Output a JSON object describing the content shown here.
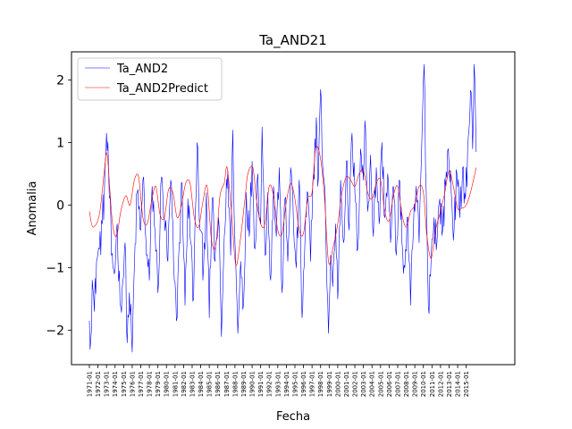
{
  "chart_data": {
    "type": "line",
    "title": "Ta_AND21",
    "xlabel": "Fecha",
    "ylabel": "Anomalia",
    "ylim": [
      -2.55,
      2.45
    ],
    "grid": false,
    "legend_position": "top-left",
    "x_start": "1971-01",
    "x_end": "2016-12",
    "x_tick_labels": [
      "1971-01",
      "1972-01",
      "1973-01",
      "1974-01",
      "1975-01",
      "1976-01",
      "1977-01",
      "1978-01",
      "1979-01",
      "1980-01",
      "1981-01",
      "1982-01",
      "1983-01",
      "1984-01",
      "1985-01",
      "1986-01",
      "1987-01",
      "1988-01",
      "1989-01",
      "1990-01",
      "1991-01",
      "1992-01",
      "1993-01",
      "1994-01",
      "1995-01",
      "1996-01",
      "1997-01",
      "1998-01",
      "1999-01",
      "2000-01",
      "2001-01",
      "2002-01",
      "2003-01",
      "2004-01",
      "2005-01",
      "2006-01",
      "2007-01",
      "2008-01",
      "2009-01",
      "2010-01",
      "2011-01",
      "2012-01",
      "2013-01",
      "2014-01",
      "2015-01"
    ],
    "y_ticks": [
      -2,
      -1,
      0,
      1,
      2
    ],
    "series": [
      {
        "name": "Ta_AND2",
        "color": "#0000ff",
        "key_points": [
          [
            "1971-01",
            -1.85
          ],
          [
            "1971-03",
            -2.15
          ],
          [
            "1971-05",
            -1.2
          ],
          [
            "1971-08",
            -1.7
          ],
          [
            "1971-11",
            -0.9
          ],
          [
            "1972-03",
            -0.7
          ],
          [
            "1972-07",
            -0.3
          ],
          [
            "1972-10",
            0.2
          ],
          [
            "1973-01",
            1.15
          ],
          [
            "1973-04",
            0.5
          ],
          [
            "1973-08",
            -0.8
          ],
          [
            "1973-12",
            -1.1
          ],
          [
            "1974-04",
            -0.3
          ],
          [
            "1974-08",
            -1.6
          ],
          [
            "1974-12",
            -1.2
          ],
          [
            "1975-03",
            -0.6
          ],
          [
            "1975-06",
            -2.2
          ],
          [
            "1975-09",
            -1.4
          ],
          [
            "1976-01",
            -2.35
          ],
          [
            "1976-04",
            -1.0
          ],
          [
            "1976-08",
            0.2
          ],
          [
            "1977-01",
            -0.4
          ],
          [
            "1977-05",
            0.45
          ],
          [
            "1977-09",
            -0.8
          ],
          [
            "1978-01",
            -1.2
          ],
          [
            "1978-05",
            0.3
          ],
          [
            "1978-09",
            -0.4
          ],
          [
            "1979-01",
            -1.4
          ],
          [
            "1979-06",
            0.45
          ],
          [
            "1979-10",
            -0.2
          ],
          [
            "1980-03",
            -0.9
          ],
          [
            "1980-07",
            0.4
          ],
          [
            "1980-12",
            -1.2
          ],
          [
            "1981-03",
            -1.85
          ],
          [
            "1981-07",
            -0.6
          ],
          [
            "1981-11",
            0.35
          ],
          [
            "1982-03",
            -1.6
          ],
          [
            "1982-07",
            0.1
          ],
          [
            "1982-11",
            -0.6
          ],
          [
            "1983-03",
            -1.5
          ],
          [
            "1983-08",
            1.0
          ],
          [
            "1983-12",
            -0.4
          ],
          [
            "1984-05",
            -1.0
          ],
          [
            "1984-09",
            0.2
          ],
          [
            "1985-01",
            -1.8
          ],
          [
            "1985-05",
            0.1
          ],
          [
            "1985-09",
            -0.9
          ],
          [
            "1986-02",
            -0.2
          ],
          [
            "1986-06",
            -2.1
          ],
          [
            "1986-10",
            -0.5
          ],
          [
            "1987-03",
            0.55
          ],
          [
            "1987-07",
            -0.8
          ],
          [
            "1987-10",
            1.2
          ],
          [
            "1988-01",
            -0.6
          ],
          [
            "1988-05",
            -2.05
          ],
          [
            "1988-09",
            -0.9
          ],
          [
            "1989-01",
            -1.6
          ],
          [
            "1989-05",
            0.2
          ],
          [
            "1989-09",
            -0.5
          ],
          [
            "1990-01",
            0.7
          ],
          [
            "1990-05",
            -0.7
          ],
          [
            "1990-09",
            0.5
          ],
          [
            "1991-01",
            -0.3
          ],
          [
            "1991-03",
            1.25
          ],
          [
            "1991-07",
            -0.8
          ],
          [
            "1991-11",
            0.2
          ],
          [
            "1992-03",
            -1.2
          ],
          [
            "1992-07",
            0.3
          ],
          [
            "1992-11",
            -0.5
          ],
          [
            "1993-03",
            0.6
          ],
          [
            "1993-07",
            -1.4
          ],
          [
            "1993-11",
            0.1
          ],
          [
            "1994-03",
            -0.9
          ],
          [
            "1994-07",
            0.6
          ],
          [
            "1994-11",
            -0.3
          ],
          [
            "1995-03",
            -1.0
          ],
          [
            "1995-07",
            0.4
          ],
          [
            "1995-11",
            -1.8
          ],
          [
            "1996-03",
            -0.6
          ],
          [
            "1996-07",
            0.2
          ],
          [
            "1996-11",
            -0.9
          ],
          [
            "1997-03",
            0.5
          ],
          [
            "1997-07",
            1.4
          ],
          [
            "1997-09",
            0.3
          ],
          [
            "1998-01",
            1.85
          ],
          [
            "1998-04",
            0.6
          ],
          [
            "1998-08",
            -0.2
          ],
          [
            "1998-12",
            -2.05
          ],
          [
            "1999-03",
            -0.8
          ],
          [
            "1999-06",
            -1.3
          ],
          [
            "1999-10",
            -0.3
          ],
          [
            "2000-01",
            -1.5
          ],
          [
            "2000-05",
            0.4
          ],
          [
            "2000-09",
            -0.6
          ],
          [
            "2001-01",
            0.7
          ],
          [
            "2001-05",
            -0.4
          ],
          [
            "2001-09",
            1.15
          ],
          [
            "2002-01",
            0.2
          ],
          [
            "2002-05",
            -0.7
          ],
          [
            "2002-09",
            0.9
          ],
          [
            "2003-01",
            0.4
          ],
          [
            "2003-03",
            1.35
          ],
          [
            "2003-07",
            -0.1
          ],
          [
            "2003-11",
            0.8
          ],
          [
            "2004-03",
            -0.5
          ],
          [
            "2004-07",
            0.6
          ],
          [
            "2004-11",
            -0.3
          ],
          [
            "2005-03",
            1.0
          ],
          [
            "2005-07",
            -0.2
          ],
          [
            "2005-11",
            0.5
          ],
          [
            "2006-03",
            -0.6
          ],
          [
            "2006-07",
            0.3
          ],
          [
            "2006-11",
            -0.8
          ],
          [
            "2007-03",
            0.4
          ],
          [
            "2007-07",
            -0.6
          ],
          [
            "2007-11",
            -1.0
          ],
          [
            "2008-03",
            -0.2
          ],
          [
            "2008-07",
            -1.6
          ],
          [
            "2008-11",
            -0.4
          ],
          [
            "2009-03",
            0.3
          ],
          [
            "2009-07",
            -0.6
          ],
          [
            "2009-11",
            1.1
          ],
          [
            "2010-02",
            2.25
          ],
          [
            "2010-05",
            0.2
          ],
          [
            "2010-08",
            -1.65
          ],
          [
            "2010-12",
            -0.8
          ],
          [
            "2011-04",
            -0.2
          ],
          [
            "2011-08",
            -0.6
          ],
          [
            "2011-12",
            0.1
          ],
          [
            "2012-04",
            -0.4
          ],
          [
            "2012-08",
            0.3
          ],
          [
            "2012-12",
            0.9
          ],
          [
            "2013-04",
            0.2
          ],
          [
            "2013-08",
            -0.4
          ],
          [
            "2013-12",
            0.5
          ],
          [
            "2014-04",
            -0.2
          ],
          [
            "2014-08",
            0.6
          ],
          [
            "2014-12",
            0.1
          ],
          [
            "2015-04",
            1.1
          ],
          [
            "2015-08",
            1.8
          ],
          [
            "2015-10",
            0.9
          ],
          [
            "2015-12",
            2.25
          ],
          [
            "2016-03",
            0.85
          ]
        ]
      },
      {
        "name": "Ta_AND2Predict",
        "color": "#ff0000",
        "key_points": [
          [
            "1971-01",
            -0.1
          ],
          [
            "1971-06",
            -0.35
          ],
          [
            "1972-03",
            -0.15
          ],
          [
            "1972-10",
            0.55
          ],
          [
            "1973-02",
            0.8
          ],
          [
            "1973-09",
            -0.25
          ],
          [
            "1974-03",
            -0.5
          ],
          [
            "1974-09",
            -0.1
          ],
          [
            "1975-04",
            0.15
          ],
          [
            "1975-10",
            0.0
          ],
          [
            "1976-04",
            0.4
          ],
          [
            "1976-10",
            0.45
          ],
          [
            "1977-04",
            -0.2
          ],
          [
            "1977-10",
            -0.3
          ],
          [
            "1978-04",
            0.05
          ],
          [
            "1978-10",
            0.3
          ],
          [
            "1979-04",
            -0.15
          ],
          [
            "1979-10",
            -0.2
          ],
          [
            "1980-04",
            0.25
          ],
          [
            "1980-10",
            0.2
          ],
          [
            "1981-04",
            -0.2
          ],
          [
            "1981-10",
            0.0
          ],
          [
            "1982-04",
            0.35
          ],
          [
            "1982-10",
            0.35
          ],
          [
            "1983-04",
            -0.2
          ],
          [
            "1983-10",
            -0.35
          ],
          [
            "1984-04",
            0.05
          ],
          [
            "1984-10",
            0.3
          ],
          [
            "1985-04",
            -0.55
          ],
          [
            "1985-10",
            -0.65
          ],
          [
            "1986-04",
            0.15
          ],
          [
            "1986-10",
            0.35
          ],
          [
            "1987-02",
            0.6
          ],
          [
            "1987-08",
            -0.1
          ],
          [
            "1988-02",
            -0.95
          ],
          [
            "1988-08",
            -0.6
          ],
          [
            "1989-03",
            0.1
          ],
          [
            "1989-07",
            0.5
          ],
          [
            "1990-02",
            0.6
          ],
          [
            "1990-07",
            0.1
          ],
          [
            "1991-01",
            -0.3
          ],
          [
            "1991-07",
            -0.3
          ],
          [
            "1992-01",
            0.3
          ],
          [
            "1992-07",
            0.15
          ],
          [
            "1993-01",
            -0.4
          ],
          [
            "1993-07",
            -0.45
          ],
          [
            "1994-01",
            0.05
          ],
          [
            "1994-07",
            0.35
          ],
          [
            "1995-01",
            0.1
          ],
          [
            "1995-07",
            -0.4
          ],
          [
            "1996-01",
            -0.45
          ],
          [
            "1996-07",
            0.1
          ],
          [
            "1997-01",
            0.2
          ],
          [
            "1997-06",
            0.9
          ],
          [
            "1997-12",
            0.8
          ],
          [
            "1998-06",
            0.2
          ],
          [
            "1998-12",
            -0.9
          ],
          [
            "1999-06",
            -0.7
          ],
          [
            "2000-01",
            -0.3
          ],
          [
            "2000-07",
            0.2
          ],
          [
            "2001-01",
            0.45
          ],
          [
            "2001-07",
            0.4
          ],
          [
            "2002-01",
            0.3
          ],
          [
            "2002-07",
            0.5
          ],
          [
            "2003-01",
            0.55
          ],
          [
            "2003-07",
            0.2
          ],
          [
            "2004-01",
            0.1
          ],
          [
            "2004-07",
            0.35
          ],
          [
            "2005-01",
            0.4
          ],
          [
            "2005-07",
            -0.1
          ],
          [
            "2006-01",
            -0.25
          ],
          [
            "2006-07",
            0.15
          ],
          [
            "2007-01",
            0.3
          ],
          [
            "2007-07",
            -0.15
          ],
          [
            "2008-01",
            -0.35
          ],
          [
            "2008-07",
            -0.1
          ],
          [
            "2009-01",
            0.0
          ],
          [
            "2009-07",
            0.3
          ],
          [
            "2010-01",
            0.2
          ],
          [
            "2010-06",
            -0.5
          ],
          [
            "2010-12",
            -0.85
          ],
          [
            "2011-06",
            -0.4
          ],
          [
            "2012-01",
            -0.1
          ],
          [
            "2012-07",
            0.2
          ],
          [
            "2013-01",
            0.55
          ],
          [
            "2013-07",
            0.3
          ],
          [
            "2014-01",
            -0.05
          ],
          [
            "2014-07",
            -0.05
          ],
          [
            "2015-01",
            0.0
          ],
          [
            "2015-07",
            0.2
          ],
          [
            "2016-03",
            0.6
          ]
        ]
      }
    ]
  }
}
